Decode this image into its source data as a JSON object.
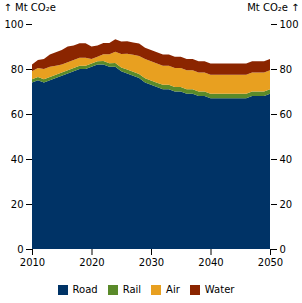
{
  "chart_data": {
    "type": "area",
    "stacked": true,
    "x": [
      2010,
      2011,
      2012,
      2013,
      2014,
      2015,
      2016,
      2017,
      2018,
      2019,
      2020,
      2021,
      2022,
      2023,
      2024,
      2025,
      2026,
      2027,
      2028,
      2029,
      2030,
      2031,
      2032,
      2033,
      2034,
      2035,
      2036,
      2037,
      2038,
      2039,
      2040,
      2041,
      2042,
      2043,
      2044,
      2045,
      2046,
      2047,
      2048,
      2049,
      2050
    ],
    "series": [
      {
        "name": "Road",
        "color": "#003366",
        "values": [
          74,
          75,
          74,
          75,
          76,
          77,
          78,
          79,
          80,
          80,
          81,
          82,
          82,
          81,
          81,
          79,
          78,
          77,
          76,
          74,
          73,
          72,
          71,
          71,
          70,
          70,
          69,
          69,
          68,
          68,
          67,
          67,
          67,
          67,
          67,
          67,
          67,
          68,
          68,
          68,
          69
        ]
      },
      {
        "name": "Rail",
        "color": "#5a8a2a",
        "values": [
          1.5,
          1.5,
          1.5,
          1.5,
          1.5,
          1.5,
          1.5,
          1.5,
          1.5,
          1.5,
          1.5,
          1.5,
          1.6,
          1.6,
          1.7,
          1.7,
          1.8,
          1.8,
          1.8,
          1.9,
          1.9,
          1.9,
          2.0,
          2.0,
          2.0,
          2.0,
          2.0,
          2.0,
          2.0,
          2.0,
          2.0,
          2.0,
          2.0,
          2.0,
          2.0,
          2.0,
          2.0,
          2.0,
          2.0,
          2.0,
          2.0
        ]
      },
      {
        "name": "Air",
        "color": "#e8a020",
        "values": [
          3.5,
          4.0,
          4.5,
          4.5,
          4.0,
          3.5,
          3.5,
          3.5,
          3.5,
          3.5,
          2.0,
          2.0,
          3.0,
          4.0,
          5.0,
          6.0,
          7.0,
          7.5,
          8.0,
          8.5,
          8.5,
          8.5,
          8.5,
          8.5,
          8.5,
          8.5,
          8.5,
          8.5,
          8.5,
          8.5,
          8.5,
          8.5,
          8.5,
          8.5,
          8.5,
          8.5,
          8.5,
          8.5,
          8.5,
          8.5,
          8.5
        ]
      },
      {
        "name": "Water",
        "color": "#8b2500",
        "values": [
          3.0,
          3.5,
          4.5,
          5.5,
          6.0,
          6.5,
          7.0,
          6.5,
          6.5,
          6.5,
          5.5,
          5.0,
          5.0,
          5.0,
          5.5,
          5.5,
          5.5,
          5.5,
          5.5,
          5.0,
          5.0,
          5.0,
          5.0,
          5.0,
          5.0,
          5.0,
          5.0,
          5.0,
          5.0,
          5.0,
          5.0,
          5.0,
          5.0,
          5.0,
          5.0,
          5.0,
          5.0,
          5.0,
          5.0,
          5.0,
          5.0
        ]
      }
    ],
    "xlim": [
      2010,
      2050
    ],
    "xticks": [
      2010,
      2020,
      2030,
      2040,
      2050
    ],
    "ylim": [
      0,
      100
    ],
    "yticks": [
      0,
      20,
      40,
      60,
      80,
      100
    ],
    "ylabel": "Mt CO₂e",
    "y2lim": [
      0,
      100
    ],
    "y2ticks": [
      0,
      20,
      40,
      60,
      80,
      100
    ],
    "y2label": "Mt CO₂e",
    "grid": false,
    "legend": "bottom"
  }
}
